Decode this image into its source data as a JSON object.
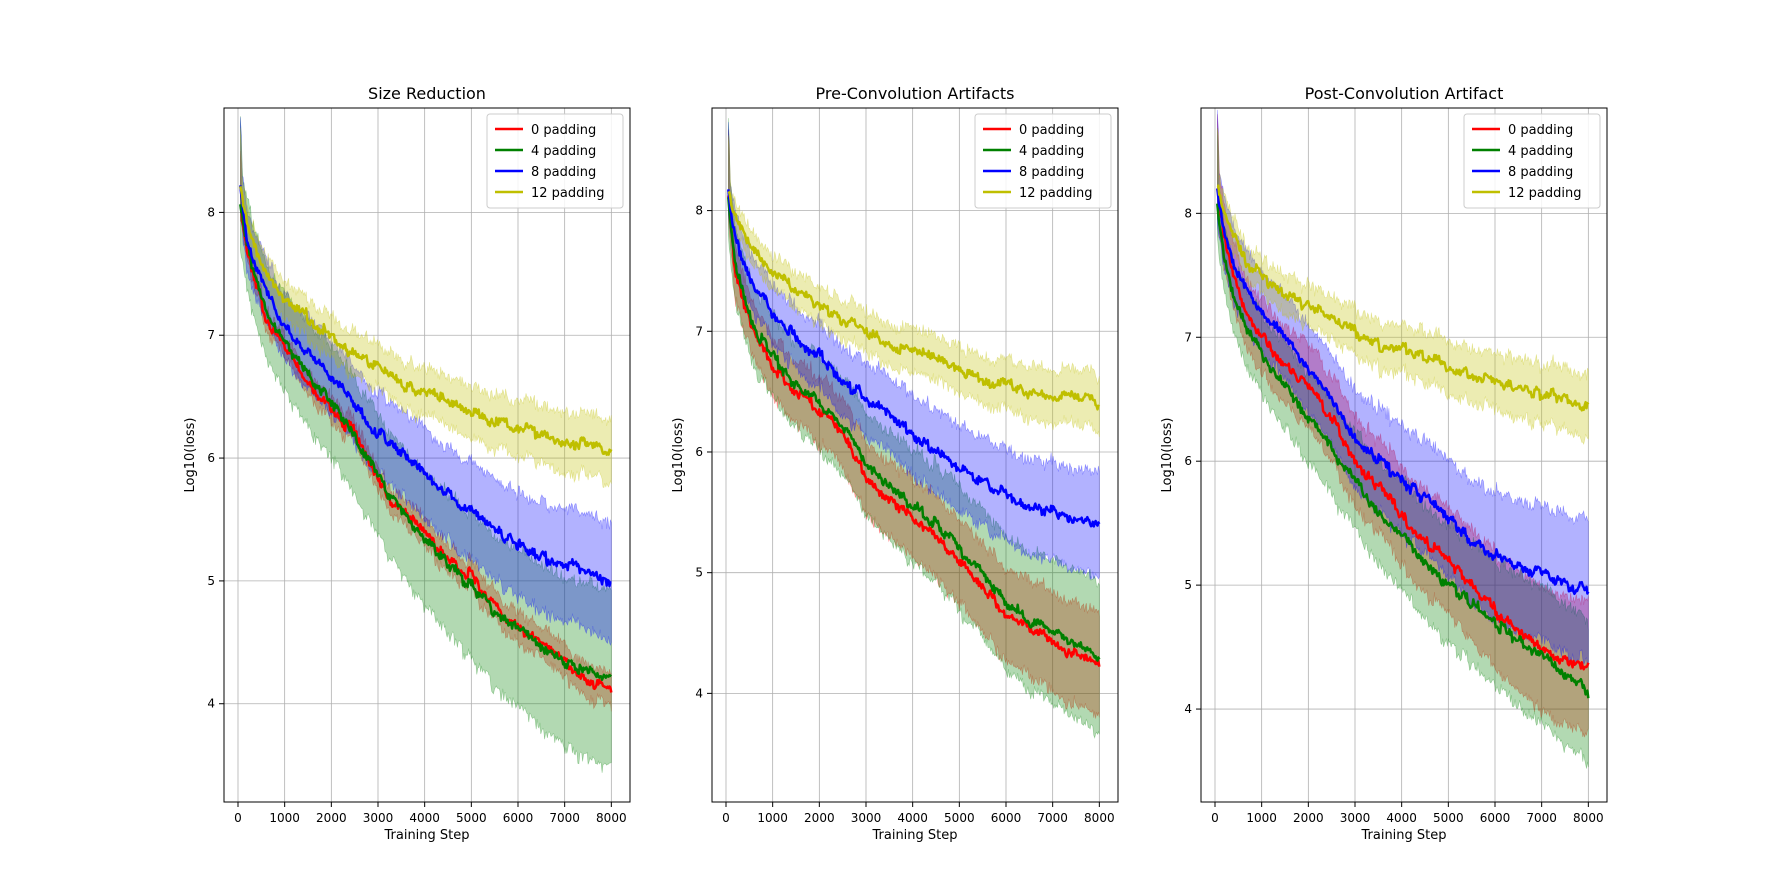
{
  "figure": {
    "legend_loc": "upper right"
  },
  "colors": {
    "0 padding": "#ff0000",
    "4 padding": "#008000",
    "8 padding": "#0000ff",
    "12 padding": "#bfbf00"
  },
  "chart_data": [
    {
      "type": "line",
      "title": "Size Reduction",
      "xlabel": "Training Step",
      "ylabel": "Log10(loss)",
      "xlim": [
        -300,
        8400
      ],
      "ylim": [
        3.2,
        8.85
      ],
      "xticks": [
        0,
        1000,
        2000,
        3000,
        4000,
        5000,
        6000,
        7000,
        8000
      ],
      "xtick_labels": [
        "0",
        "1000",
        "2000",
        "3000",
        "4000",
        "5000",
        "6000",
        "7000",
        "8000"
      ],
      "yticks": [
        4,
        5,
        6,
        7,
        8
      ],
      "ytick_labels": [
        "4",
        "5",
        "6",
        "7",
        "8"
      ],
      "grid": true,
      "legend": [
        "0 padding",
        "4 padding",
        "8 padding",
        "12 padding"
      ],
      "x": [
        50,
        100,
        200,
        400,
        600,
        800,
        1000,
        1500,
        2000,
        2500,
        3000,
        3500,
        4000,
        4500,
        5000,
        5500,
        6000,
        6500,
        7000,
        7500,
        8000
      ],
      "series": [
        {
          "name": "0 padding",
          "values": [
            8.1,
            7.95,
            7.7,
            7.4,
            7.15,
            7.0,
            6.9,
            6.6,
            6.4,
            6.2,
            5.8,
            5.55,
            5.4,
            5.15,
            5.05,
            4.8,
            4.6,
            4.5,
            4.35,
            4.2,
            4.1
          ],
          "band": 0.1
        },
        {
          "name": "4 padding",
          "values": [
            8.1,
            7.95,
            7.7,
            7.45,
            7.25,
            7.05,
            6.95,
            6.7,
            6.45,
            6.15,
            5.85,
            5.55,
            5.35,
            5.15,
            4.95,
            4.75,
            4.6,
            4.45,
            4.35,
            4.25,
            4.2
          ],
          "band": 0.7
        },
        {
          "name": "8 padding",
          "values": [
            8.2,
            8.0,
            7.8,
            7.55,
            7.35,
            7.2,
            7.05,
            6.85,
            6.65,
            6.45,
            6.2,
            6.05,
            5.85,
            5.7,
            5.55,
            5.4,
            5.3,
            5.2,
            5.15,
            5.05,
            5.0
          ],
          "band": 0.45
        },
        {
          "name": "12 padding",
          "values": [
            8.2,
            8.1,
            7.9,
            7.65,
            7.5,
            7.4,
            7.3,
            7.15,
            7.0,
            6.85,
            6.75,
            6.6,
            6.55,
            6.45,
            6.4,
            6.3,
            6.25,
            6.2,
            6.15,
            6.1,
            6.05
          ],
          "band": 0.22
        }
      ]
    },
    {
      "type": "line",
      "title": "Pre-Convolution Artifacts",
      "xlabel": "Training Step",
      "ylabel": "Log10(loss)",
      "xlim": [
        -300,
        8400
      ],
      "ylim": [
        3.1,
        8.85
      ],
      "xticks": [
        0,
        1000,
        2000,
        3000,
        4000,
        5000,
        6000,
        7000,
        8000
      ],
      "xtick_labels": [
        "0",
        "1000",
        "2000",
        "3000",
        "4000",
        "5000",
        "6000",
        "7000",
        "8000"
      ],
      "yticks": [
        4,
        5,
        6,
        7,
        8
      ],
      "ytick_labels": [
        "4",
        "5",
        "6",
        "7",
        "8"
      ],
      "grid": true,
      "legend": [
        "0 padding",
        "4 padding",
        "8 padding",
        "12 padding"
      ],
      "x": [
        50,
        100,
        200,
        400,
        600,
        800,
        1000,
        1500,
        2000,
        2500,
        3000,
        3500,
        4000,
        4500,
        5000,
        5500,
        6000,
        6500,
        7000,
        7500,
        8000
      ],
      "series": [
        {
          "name": "0 padding",
          "values": [
            8.1,
            7.85,
            7.5,
            7.2,
            7.0,
            6.85,
            6.7,
            6.5,
            6.35,
            6.15,
            5.8,
            5.6,
            5.45,
            5.3,
            5.1,
            4.9,
            4.65,
            4.55,
            4.45,
            4.3,
            4.25
          ],
          "band": 0.4
        },
        {
          "name": "4 padding",
          "values": [
            8.1,
            7.85,
            7.55,
            7.25,
            7.05,
            6.9,
            6.8,
            6.55,
            6.4,
            6.2,
            5.9,
            5.7,
            5.55,
            5.4,
            5.2,
            5.0,
            4.75,
            4.6,
            4.5,
            4.4,
            4.3
          ],
          "band": 0.6
        },
        {
          "name": "8 padding",
          "values": [
            8.2,
            8.0,
            7.75,
            7.55,
            7.4,
            7.3,
            7.15,
            6.95,
            6.8,
            6.6,
            6.45,
            6.3,
            6.15,
            6.0,
            5.85,
            5.75,
            5.65,
            5.55,
            5.5,
            5.45,
            5.4
          ],
          "band": 0.4
        },
        {
          "name": "12 padding",
          "values": [
            8.2,
            8.1,
            7.95,
            7.8,
            7.7,
            7.6,
            7.5,
            7.35,
            7.2,
            7.1,
            7.0,
            6.9,
            6.85,
            6.75,
            6.7,
            6.6,
            6.55,
            6.5,
            6.45,
            6.45,
            6.4
          ],
          "band": 0.2
        }
      ]
    },
    {
      "type": "line",
      "title": "Post-Convolution Artifact",
      "xlabel": "Training Step",
      "ylabel": "Log10(loss)",
      "xlim": [
        -300,
        8400
      ],
      "ylim": [
        3.25,
        8.85
      ],
      "xticks": [
        0,
        1000,
        2000,
        3000,
        4000,
        5000,
        6000,
        7000,
        8000
      ],
      "xtick_labels": [
        "0",
        "1000",
        "2000",
        "3000",
        "4000",
        "5000",
        "6000",
        "7000",
        "8000"
      ],
      "yticks": [
        4,
        5,
        6,
        7,
        8
      ],
      "ytick_labels": [
        "4",
        "5",
        "6",
        "7",
        "8"
      ],
      "grid": true,
      "legend": [
        "0 padding",
        "4 padding",
        "8 padding",
        "12 padding"
      ],
      "x": [
        50,
        100,
        200,
        400,
        600,
        800,
        1000,
        1500,
        2000,
        2500,
        3000,
        3500,
        4000,
        4500,
        5000,
        5500,
        6000,
        6500,
        7000,
        7500,
        8000
      ],
      "series": [
        {
          "name": "0 padding",
          "values": [
            8.2,
            8.0,
            7.8,
            7.5,
            7.25,
            7.1,
            7.0,
            6.8,
            6.6,
            6.35,
            6.0,
            5.8,
            5.55,
            5.35,
            5.2,
            5.0,
            4.8,
            4.6,
            4.5,
            4.4,
            4.35
          ],
          "band": 0.5
        },
        {
          "name": "4 padding",
          "values": [
            8.1,
            7.9,
            7.65,
            7.35,
            7.15,
            7.0,
            6.85,
            6.6,
            6.35,
            6.1,
            5.85,
            5.6,
            5.4,
            5.2,
            5.0,
            4.85,
            4.7,
            4.55,
            4.45,
            4.3,
            4.15
          ],
          "band": 0.55
        },
        {
          "name": "8 padding",
          "values": [
            8.2,
            8.05,
            7.85,
            7.6,
            7.45,
            7.3,
            7.2,
            7.0,
            6.75,
            6.5,
            6.2,
            6.0,
            5.85,
            5.7,
            5.55,
            5.35,
            5.25,
            5.15,
            5.1,
            5.0,
            4.95
          ],
          "band": 0.55
        },
        {
          "name": "12 padding",
          "values": [
            8.25,
            8.15,
            8.0,
            7.8,
            7.65,
            7.55,
            7.5,
            7.35,
            7.25,
            7.15,
            7.05,
            6.95,
            6.9,
            6.85,
            6.75,
            6.7,
            6.65,
            6.6,
            6.55,
            6.5,
            6.45
          ],
          "band": 0.22
        }
      ]
    }
  ]
}
